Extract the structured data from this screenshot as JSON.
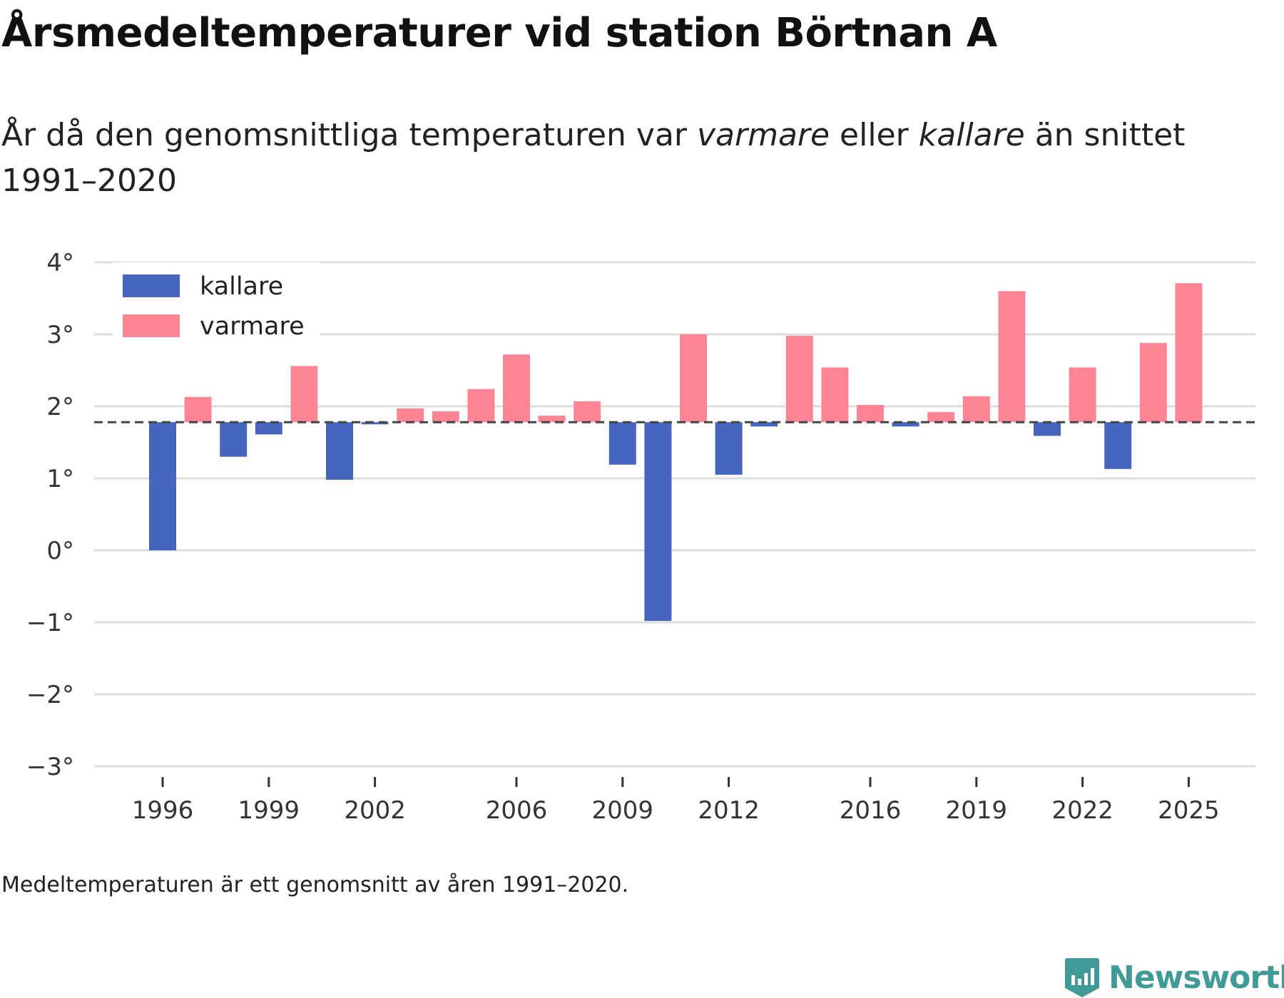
{
  "title": "Årsmedeltemperaturer vid station Börtnan A",
  "subtitle": {
    "part1": "År då den genomsnittliga temperaturen var ",
    "warm_word": "varmare",
    "part2": " eller ",
    "cold_word": "kallare",
    "part3": " än snittet 1991–2020"
  },
  "note": "Medeltemperaturen är ett genomsnitt av åren 1991–2020.",
  "brand": "Newsworthy",
  "colors": {
    "cold": "#4565bf",
    "warm": "#fd8493",
    "grid": "#dddddd",
    "baseline": "#444444",
    "brand": "#3f9a98"
  },
  "chart_data": {
    "type": "bar",
    "title": "Årsmedeltemperaturer vid station Börtnan A",
    "xlabel": "",
    "ylabel": "",
    "baseline": 1.78,
    "ylim": [
      -3,
      4
    ],
    "yticks": [
      4,
      3,
      2,
      1,
      0,
      -1,
      -2,
      -3
    ],
    "ytick_labels": [
      "4°",
      "3°",
      "2°",
      "1°",
      "0°",
      "−1°",
      "−2°",
      "−3°"
    ],
    "x": [
      1996,
      1997,
      1998,
      1999,
      2000,
      2001,
      2002,
      2003,
      2004,
      2005,
      2006,
      2007,
      2008,
      2009,
      2010,
      2011,
      2012,
      2013,
      2014,
      2015,
      2016,
      2017,
      2018,
      2019,
      2020,
      2021,
      2022,
      2023,
      2024,
      2025
    ],
    "values": [
      0.0,
      2.13,
      1.3,
      1.61,
      2.56,
      0.98,
      1.75,
      1.97,
      1.93,
      2.24,
      2.72,
      1.87,
      2.07,
      1.19,
      -0.98,
      3.0,
      1.05,
      1.72,
      2.98,
      2.54,
      2.02,
      1.72,
      1.92,
      2.14,
      3.6,
      1.59,
      2.54,
      1.13,
      2.88,
      3.71
    ],
    "xtick_labels": [
      "1996",
      "1999",
      "2002",
      "2006",
      "2009",
      "2012",
      "2016",
      "2019",
      "2022",
      "2025"
    ],
    "legend": {
      "position": "top-left",
      "entries": [
        {
          "label": "kallare",
          "color": "#4565bf"
        },
        {
          "label": "varmare",
          "color": "#fd8493"
        }
      ]
    }
  }
}
